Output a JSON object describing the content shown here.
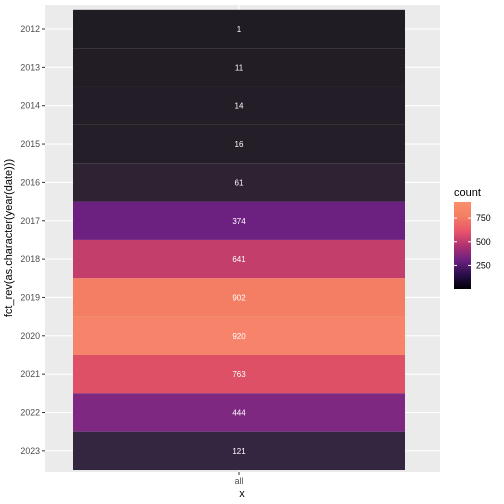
{
  "chart_data": {
    "type": "heatmap",
    "xlabel": "x",
    "ylabel": "fct_rev(as.character(year(date)))",
    "x_categories": [
      "all"
    ],
    "y_categories": [
      "2012",
      "2013",
      "2014",
      "2015",
      "2016",
      "2017",
      "2018",
      "2019",
      "2020",
      "2021",
      "2022",
      "2023"
    ],
    "cells": [
      {
        "x": "all",
        "y": "2012",
        "value": 1,
        "color": "#201C24"
      },
      {
        "x": "all",
        "y": "2013",
        "value": 11,
        "color": "#221D25"
      },
      {
        "x": "all",
        "y": "2014",
        "value": 14,
        "color": "#221D26"
      },
      {
        "x": "all",
        "y": "2015",
        "value": 16,
        "color": "#231E27"
      },
      {
        "x": "all",
        "y": "2016",
        "value": 61,
        "color": "#2E2233"
      },
      {
        "x": "all",
        "y": "2017",
        "value": 374,
        "color": "#6C2181"
      },
      {
        "x": "all",
        "y": "2018",
        "value": 641,
        "color": "#C33E6A"
      },
      {
        "x": "all",
        "y": "2019",
        "value": 902,
        "color": "#F47E63"
      },
      {
        "x": "all",
        "y": "2020",
        "value": 920,
        "color": "#F6836A"
      },
      {
        "x": "all",
        "y": "2021",
        "value": 763,
        "color": "#DD5065"
      },
      {
        "x": "all",
        "y": "2022",
        "value": 444,
        "color": "#7F2881"
      },
      {
        "x": "all",
        "y": "2023",
        "value": 121,
        "color": "#342540"
      }
    ],
    "legend": {
      "title": "count",
      "breaks": [
        250,
        500,
        750
      ],
      "range": [
        1,
        920
      ],
      "colors": [
        "#000004",
        "#2B0E4C",
        "#6C2181",
        "#B1316F",
        "#E9556A",
        "#F47E63",
        "#FA8F6B"
      ],
      "placement": "right"
    },
    "grid": true,
    "panel_background": "#EBEBEB"
  }
}
